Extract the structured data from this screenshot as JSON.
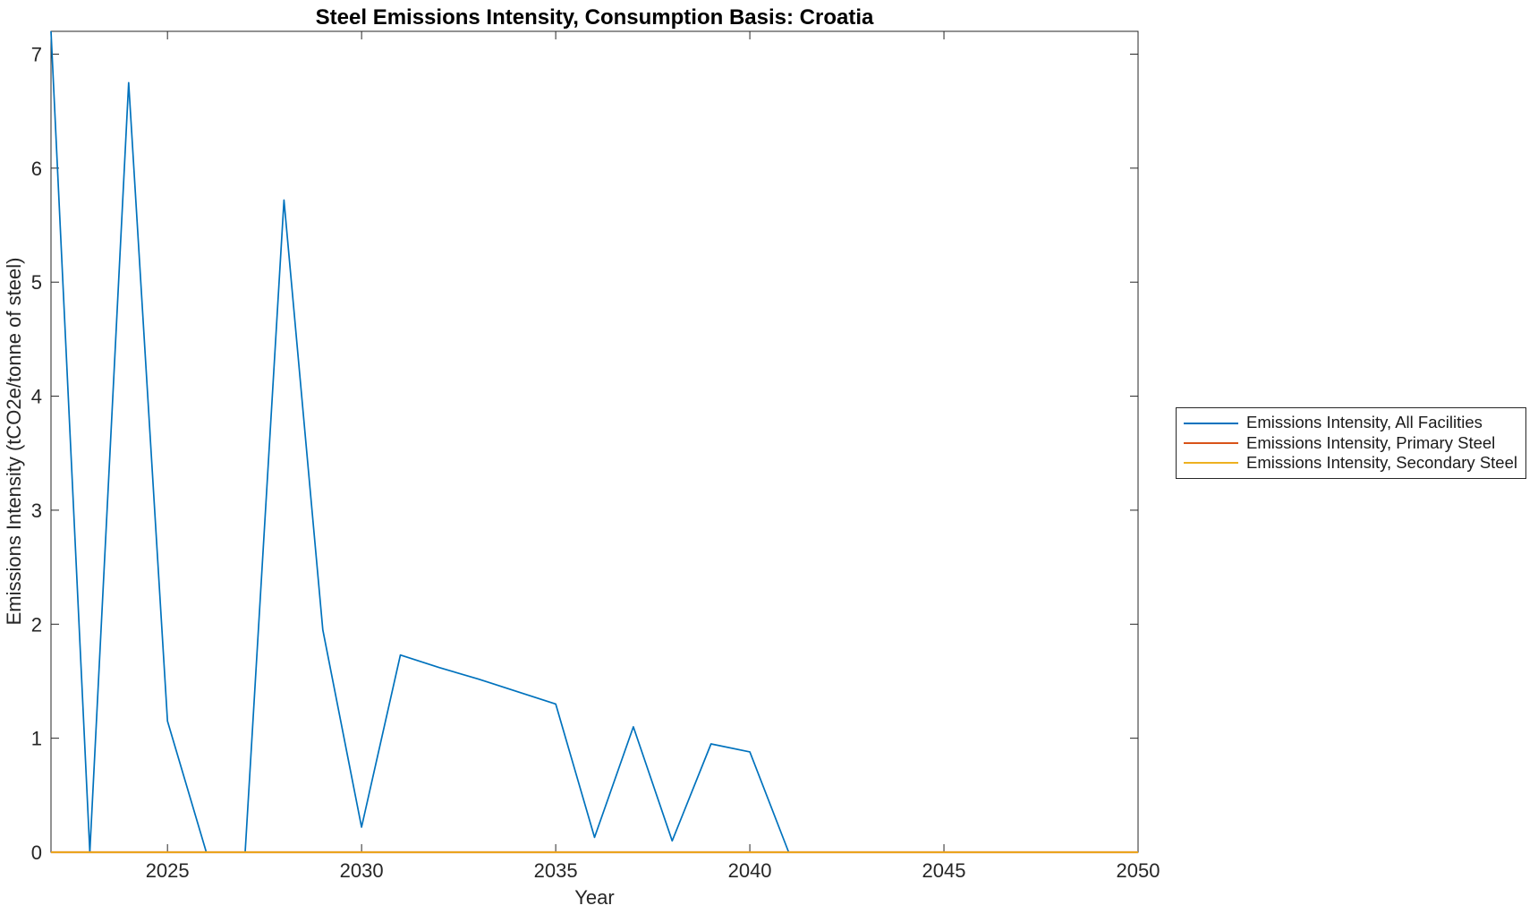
{
  "figure": {
    "background": "#ffffff",
    "axis_color": "#262626"
  },
  "chart_data": {
    "type": "line",
    "title": "Steel Emissions Intensity, Consumption Basis: Croatia",
    "xlabel": "Year",
    "ylabel": "Emissions Intensity (tCO2e/tonne of steel)",
    "xlim": [
      2022,
      2050
    ],
    "ylim": [
      0,
      7.2
    ],
    "x_ticks": [
      2025,
      2030,
      2035,
      2040,
      2045,
      2050
    ],
    "y_ticks": [
      0,
      1,
      2,
      3,
      4,
      5,
      6,
      7
    ],
    "grid": false,
    "legend_position": "right-outside",
    "x": [
      2022,
      2023,
      2024,
      2025,
      2026,
      2027,
      2028,
      2029,
      2030,
      2031,
      2032,
      2033,
      2034,
      2035,
      2036,
      2037,
      2038,
      2039,
      2040,
      2041,
      2042,
      2043,
      2044,
      2045,
      2046,
      2047,
      2048,
      2049,
      2050
    ],
    "series": [
      {
        "name": "Emissions Intensity, All Facilities",
        "color": "#0072BD",
        "values": [
          7.2,
          0,
          6.75,
          1.15,
          0,
          0,
          5.72,
          1.95,
          0.22,
          1.73,
          1.62,
          1.52,
          1.41,
          1.3,
          0.13,
          1.1,
          0.1,
          0.95,
          0.88,
          0,
          0,
          0,
          0,
          0,
          0,
          0,
          0,
          0,
          0
        ]
      },
      {
        "name": "Emissions Intensity, Primary Steel",
        "color": "#D95319",
        "values": [
          0,
          0,
          0,
          0,
          0,
          0,
          0,
          0,
          0,
          0,
          0,
          0,
          0,
          0,
          0,
          0,
          0,
          0,
          0,
          0,
          0,
          0,
          0,
          0,
          0,
          0,
          0,
          0,
          0
        ]
      },
      {
        "name": "Emissions Intensity, Secondary Steel",
        "color": "#EDB120",
        "values": [
          0,
          0,
          0,
          0,
          0,
          0,
          0,
          0,
          0,
          0,
          0,
          0,
          0,
          0,
          0,
          0,
          0,
          0,
          0,
          0,
          0,
          0,
          0,
          0,
          0,
          0,
          0,
          0,
          0
        ]
      }
    ]
  }
}
